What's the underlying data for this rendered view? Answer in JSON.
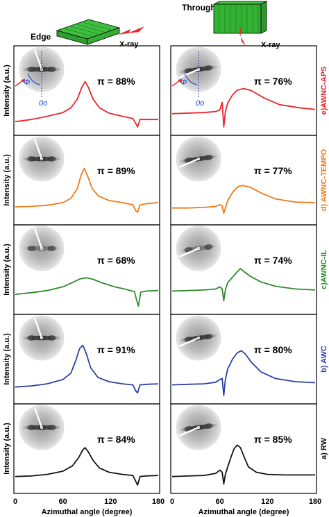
{
  "header": {
    "edge_label": "Edge",
    "through_label": "Through",
    "xray_label_left": "X-ray",
    "xray_label_right": "X-ray",
    "block_color": "#33b233",
    "arrow_color": "#e8282c"
  },
  "axes": {
    "ylabel": "Intensity (a.u.)",
    "xlabel": "Azimuthal angle (degree)",
    "xticks": [
      "0",
      "60",
      "120",
      "180"
    ],
    "xlim": [
      0,
      180
    ]
  },
  "inset_annotations": {
    "phi_label": "Φ",
    "zero_label": "0o"
  },
  "chart_data": [
    {
      "type": "line",
      "column": "Edge",
      "sample": "e)AWNC-APS",
      "pi": "π = 88%",
      "color": "#e8262c",
      "x": [
        0,
        20,
        40,
        60,
        70,
        78,
        84,
        88,
        92,
        98,
        106,
        118,
        135,
        148,
        152,
        154,
        157,
        165,
        180
      ],
      "y": [
        0.1,
        0.14,
        0.2,
        0.27,
        0.36,
        0.52,
        0.75,
        0.85,
        0.74,
        0.52,
        0.36,
        0.26,
        0.2,
        0.16,
        0.06,
        0.0,
        0.14,
        0.14,
        0.14
      ]
    },
    {
      "type": "line",
      "column": "Through",
      "sample": "e)AWNC-APS",
      "pi": "π = 76%",
      "color": "#e8262c",
      "x": [
        0,
        20,
        40,
        55,
        60,
        63,
        65,
        67,
        70,
        76,
        82,
        90,
        100,
        115,
        135,
        160,
        180
      ],
      "y": [
        0.25,
        0.26,
        0.27,
        0.29,
        0.32,
        0.46,
        0.0,
        0.28,
        0.45,
        0.6,
        0.69,
        0.72,
        0.68,
        0.55,
        0.42,
        0.36,
        0.33
      ]
    },
    {
      "type": "line",
      "column": "Edge",
      "sample": "d) AWNC-TEMPO",
      "pi": "π = 89%",
      "color": "#f07a1a",
      "x": [
        0,
        20,
        40,
        60,
        70,
        78,
        83,
        87,
        91,
        97,
        105,
        118,
        135,
        148,
        152,
        154,
        157,
        165,
        180
      ],
      "y": [
        0.18,
        0.19,
        0.21,
        0.26,
        0.34,
        0.52,
        0.78,
        0.9,
        0.76,
        0.52,
        0.38,
        0.3,
        0.26,
        0.22,
        0.1,
        0.08,
        0.22,
        0.24,
        0.26
      ]
    },
    {
      "type": "line",
      "column": "Through",
      "sample": "d) AWNC-TEMPO",
      "pi": "π = 77%",
      "color": "#f07a1a",
      "x": [
        0,
        20,
        40,
        55,
        60,
        63,
        65,
        67,
        70,
        76,
        82,
        88,
        98,
        112,
        130,
        155,
        180
      ],
      "y": [
        0.16,
        0.16,
        0.17,
        0.19,
        0.22,
        0.2,
        0.06,
        0.16,
        0.3,
        0.45,
        0.55,
        0.58,
        0.55,
        0.44,
        0.33,
        0.27,
        0.26
      ]
    },
    {
      "type": "line",
      "column": "Edge",
      "sample": "c)AWNC-IL",
      "pi": "π = 68%",
      "color": "#2d8a2d",
      "x": [
        0,
        20,
        40,
        60,
        72,
        82,
        90,
        98,
        110,
        125,
        140,
        150,
        153,
        155,
        158,
        165,
        180
      ],
      "y": [
        0.22,
        0.25,
        0.29,
        0.36,
        0.44,
        0.51,
        0.53,
        0.5,
        0.43,
        0.36,
        0.31,
        0.27,
        0.1,
        0.0,
        0.26,
        0.28,
        0.29
      ]
    },
    {
      "type": "line",
      "column": "Through",
      "sample": "c)AWNC-IL",
      "pi": "π = 74%",
      "color": "#2d8a2d",
      "x": [
        0,
        20,
        40,
        55,
        60,
        63,
        65,
        67,
        70,
        76,
        82,
        86,
        90,
        98,
        112,
        130,
        155,
        180
      ],
      "y": [
        0.28,
        0.29,
        0.3,
        0.32,
        0.36,
        0.32,
        0.1,
        0.3,
        0.44,
        0.54,
        0.64,
        0.7,
        0.65,
        0.56,
        0.45,
        0.37,
        0.32,
        0.3
      ]
    },
    {
      "type": "line",
      "column": "Edge",
      "sample": "b) AWC",
      "pi": "π = 91%",
      "color": "#2c3fa8",
      "x": [
        0,
        20,
        40,
        60,
        70,
        76,
        81,
        85,
        89,
        95,
        104,
        118,
        135,
        148,
        152,
        154,
        157,
        165,
        180
      ],
      "y": [
        0.16,
        0.18,
        0.22,
        0.3,
        0.42,
        0.65,
        0.88,
        0.94,
        0.8,
        0.52,
        0.34,
        0.26,
        0.22,
        0.2,
        0.08,
        0.05,
        0.2,
        0.21,
        0.22
      ]
    },
    {
      "type": "line",
      "column": "Through",
      "sample": "b) AWC",
      "pi": "π = 80%",
      "color": "#2c3fa8",
      "x": [
        0,
        20,
        40,
        55,
        60,
        63,
        65,
        67,
        70,
        76,
        82,
        87,
        92,
        100,
        112,
        130,
        155,
        180
      ],
      "y": [
        0.2,
        0.21,
        0.22,
        0.25,
        0.3,
        0.32,
        0.0,
        0.3,
        0.5,
        0.68,
        0.8,
        0.84,
        0.78,
        0.62,
        0.44,
        0.32,
        0.26,
        0.24
      ]
    },
    {
      "type": "line",
      "column": "Edge",
      "sample": "a) RW",
      "pi": "π = 84%",
      "color": "#111111",
      "x": [
        0,
        20,
        40,
        60,
        72,
        80,
        85,
        88,
        92,
        98,
        106,
        118,
        135,
        148,
        152,
        154,
        157,
        165,
        180
      ],
      "y": [
        0.16,
        0.17,
        0.2,
        0.26,
        0.36,
        0.52,
        0.66,
        0.7,
        0.62,
        0.46,
        0.32,
        0.24,
        0.2,
        0.18,
        0.06,
        0.0,
        0.16,
        0.17,
        0.18
      ]
    },
    {
      "type": "line",
      "column": "Through",
      "sample": "a) RW",
      "pi": "π = 85%",
      "color": "#111111",
      "x": [
        0,
        20,
        40,
        55,
        60,
        63,
        65,
        67,
        70,
        74,
        78,
        82,
        86,
        90,
        96,
        106,
        120,
        140,
        160,
        180
      ],
      "y": [
        0.16,
        0.17,
        0.18,
        0.22,
        0.28,
        0.24,
        0.02,
        0.2,
        0.34,
        0.52,
        0.68,
        0.75,
        0.7,
        0.55,
        0.34,
        0.24,
        0.2,
        0.19,
        0.19,
        0.19
      ]
    }
  ]
}
